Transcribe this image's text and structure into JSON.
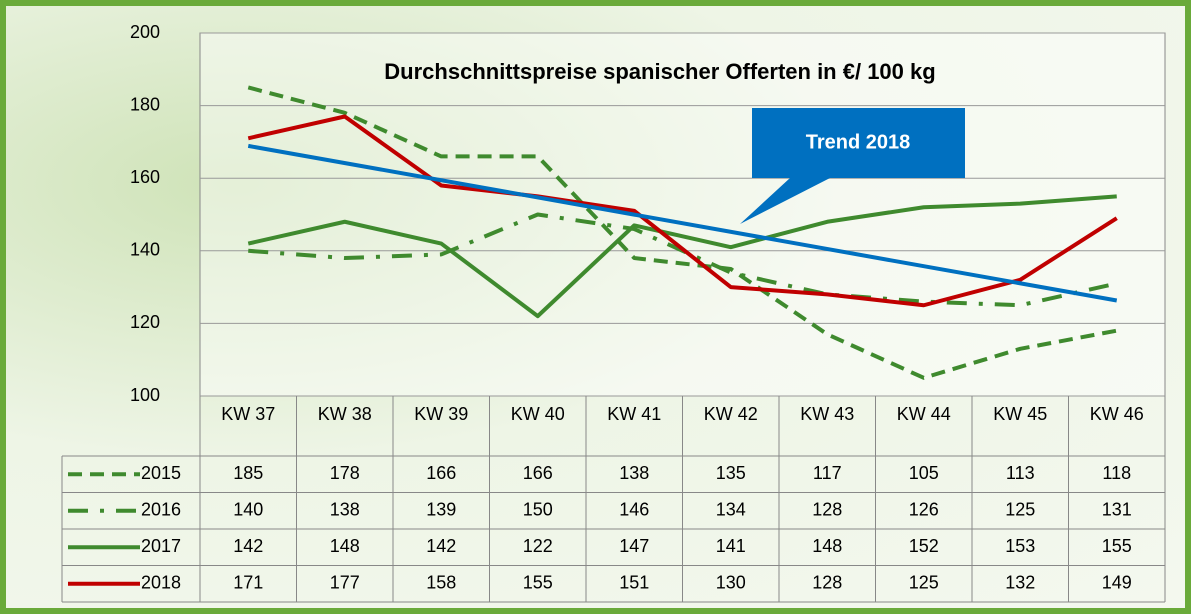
{
  "chart_data": {
    "type": "line",
    "title": "Durchschnittspreise spanischer Offerten in €/ 100 kg",
    "categories": [
      "KW 37",
      "KW 38",
      "KW 39",
      "KW 40",
      "KW 41",
      "KW 42",
      "KW 43",
      "KW 44",
      "KW 45",
      "KW 46"
    ],
    "series": [
      {
        "name": "2015",
        "color": "#3f8a2e",
        "dash": "dashed",
        "values": [
          185,
          178,
          166,
          166,
          138,
          135,
          117,
          105,
          113,
          118
        ]
      },
      {
        "name": "2016",
        "color": "#3f8a2e",
        "dash": "dashdot",
        "values": [
          140,
          138,
          139,
          150,
          146,
          134,
          128,
          126,
          125,
          131
        ]
      },
      {
        "name": "2017",
        "color": "#3f8a2e",
        "dash": "solid",
        "values": [
          142,
          148,
          142,
          122,
          147,
          141,
          148,
          152,
          153,
          155
        ]
      },
      {
        "name": "2018",
        "color": "#c00000",
        "dash": "solid",
        "values": [
          171,
          177,
          158,
          155,
          151,
          130,
          128,
          125,
          132,
          149
        ]
      }
    ],
    "trend": {
      "name": "Trend 2018",
      "color": "#0070c0",
      "values": [
        168.9,
        126.3
      ]
    },
    "ylim": [
      100,
      200
    ],
    "yticks": [
      100,
      120,
      140,
      160,
      180,
      200
    ],
    "grid": true,
    "data_table": true
  }
}
